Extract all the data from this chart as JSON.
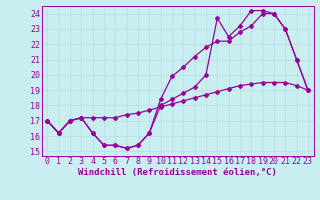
{
  "xlabel": "Windchill (Refroidissement éolien,°C)",
  "bg_color": "#c8eef0",
  "line_color": "#990099",
  "grid_color": "#b8dde0",
  "xlim": [
    -0.5,
    23.5
  ],
  "ylim": [
    14.7,
    24.5
  ],
  "xticks": [
    0,
    1,
    2,
    3,
    4,
    5,
    6,
    7,
    8,
    9,
    10,
    11,
    12,
    13,
    14,
    15,
    16,
    17,
    18,
    19,
    20,
    21,
    22,
    23
  ],
  "yticks": [
    15,
    16,
    17,
    18,
    19,
    20,
    21,
    22,
    23,
    24
  ],
  "line1_x": [
    0,
    1,
    2,
    3,
    4,
    5,
    6,
    7,
    8,
    9,
    10,
    11,
    12,
    13,
    14,
    15,
    16,
    17,
    18,
    19,
    20,
    21,
    22,
    23
  ],
  "line1_y": [
    17.0,
    16.2,
    17.0,
    17.2,
    17.2,
    17.2,
    17.2,
    17.4,
    17.5,
    17.7,
    17.9,
    18.1,
    18.3,
    18.5,
    18.7,
    18.9,
    19.1,
    19.3,
    19.4,
    19.5,
    19.5,
    19.5,
    19.3,
    19.0
  ],
  "line2_x": [
    0,
    1,
    2,
    3,
    4,
    5,
    6,
    7,
    8,
    9,
    10,
    11,
    12,
    13,
    14,
    15,
    16,
    17,
    18,
    19,
    20,
    21,
    22,
    23
  ],
  "line2_y": [
    17.0,
    16.2,
    17.0,
    17.2,
    16.2,
    15.4,
    15.4,
    15.2,
    15.4,
    16.2,
    18.4,
    19.9,
    20.5,
    21.2,
    21.8,
    22.2,
    22.2,
    22.8,
    23.2,
    24.0,
    24.0,
    23.0,
    21.0,
    19.0
  ],
  "line3_x": [
    0,
    1,
    2,
    3,
    4,
    5,
    6,
    7,
    8,
    9,
    10,
    11,
    12,
    13,
    14,
    15,
    16,
    17,
    18,
    19,
    20,
    21,
    22,
    23
  ],
  "line3_y": [
    17.0,
    16.2,
    17.0,
    17.2,
    16.2,
    15.4,
    15.4,
    15.2,
    15.4,
    16.2,
    18.0,
    18.4,
    18.8,
    19.2,
    20.0,
    23.7,
    22.5,
    23.2,
    24.2,
    24.2,
    24.0,
    23.0,
    21.0,
    19.0
  ],
  "xlabel_fontsize": 6.5,
  "tick_fontsize": 6.0,
  "markersize": 2.0,
  "linewidth": 0.9
}
